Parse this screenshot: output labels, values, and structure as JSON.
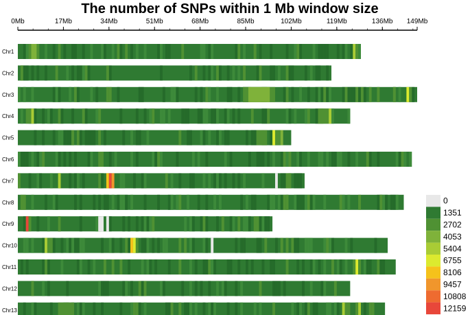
{
  "chart_data": {
    "type": "heatmap",
    "title": "The number of SNPs within 1 Mb window size",
    "x_unit": "Mb",
    "xlim": [
      0,
      149
    ],
    "x_ticks": [
      0,
      17,
      34,
      51,
      68,
      85,
      102,
      119,
      136,
      149
    ],
    "x_tick_labels": [
      "0Mb",
      "17Mb",
      "34Mb",
      "51Mb",
      "68Mb",
      "85Mb",
      "102Mb",
      "119Mb",
      "136Mb",
      "149Mb"
    ],
    "base_color": "#2f7a32",
    "legend": {
      "values": [
        0,
        1351,
        2702,
        4053,
        5404,
        6755,
        8106,
        9457,
        10808,
        12159
      ],
      "colors": [
        "#e8e8e8",
        "#2f7a32",
        "#4f9133",
        "#7fb23a",
        "#a9cc35",
        "#dcea2f",
        "#f5c21b",
        "#f0962c",
        "#ee6b30",
        "#e8473a"
      ]
    },
    "chromosomes": [
      {
        "name": "Chr1",
        "length": 128,
        "highlights": [
          [
            4,
            8,
            2702
          ],
          [
            5,
            7,
            4053
          ],
          [
            15,
            16,
            2702
          ],
          [
            40,
            41,
            2702
          ],
          [
            88,
            89,
            2702
          ],
          [
            104,
            105,
            2702
          ],
          [
            125,
            126,
            5404
          ],
          [
            126,
            127,
            2702
          ]
        ]
      },
      {
        "name": "Chr2",
        "length": 117,
        "highlights": [
          [
            1,
            2,
            2702
          ],
          [
            33,
            34,
            2702
          ],
          [
            66,
            67,
            2702
          ],
          [
            90,
            91,
            2702
          ]
        ]
      },
      {
        "name": "Chr3",
        "length": 149,
        "highlights": [
          [
            84,
            96,
            2702
          ],
          [
            86,
            94,
            4053
          ],
          [
            122,
            123,
            2702
          ],
          [
            134,
            135,
            2702
          ],
          [
            140,
            141,
            2702
          ],
          [
            145,
            146,
            6755
          ],
          [
            146,
            147,
            2702
          ]
        ]
      },
      {
        "name": "Chr4",
        "length": 124,
        "highlights": [
          [
            3,
            6,
            2702
          ],
          [
            5,
            6,
            5404
          ],
          [
            24,
            25,
            2702
          ],
          [
            50,
            51,
            2702
          ],
          [
            112,
            116,
            2702
          ],
          [
            116,
            117,
            5404
          ]
        ]
      },
      {
        "name": "Chr5",
        "length": 102,
        "highlights": [
          [
            20,
            21,
            2702
          ],
          [
            60,
            61,
            2702
          ],
          [
            89,
            93,
            2702
          ],
          [
            95,
            96,
            6755
          ],
          [
            96,
            98,
            2702
          ],
          [
            98,
            99,
            4053
          ]
        ]
      },
      {
        "name": "Chr6",
        "length": 147,
        "highlights": [
          [
            9,
            10,
            2702
          ],
          [
            30,
            32,
            2702
          ],
          [
            52,
            53,
            2702
          ],
          [
            101,
            102,
            2702
          ],
          [
            130,
            131,
            2702
          ],
          [
            143,
            144,
            2702
          ]
        ]
      },
      {
        "name": "Chr7",
        "length": 107,
        "highlights": [
          [
            15,
            16,
            5404
          ],
          [
            30,
            31,
            2702
          ],
          [
            33,
            34,
            8106
          ],
          [
            34,
            35,
            12159
          ],
          [
            35,
            36,
            9457
          ],
          [
            55,
            56,
            2702
          ],
          [
            96,
            97,
            0
          ],
          [
            100,
            102,
            2702
          ]
        ]
      },
      {
        "name": "Chr8",
        "length": 144,
        "highlights": [
          [
            1,
            3,
            2702
          ],
          [
            60,
            61,
            2702
          ],
          [
            100,
            101,
            2702
          ],
          [
            120,
            121,
            2702
          ],
          [
            135,
            136,
            2702
          ]
        ]
      },
      {
        "name": "Chr9",
        "length": 95,
        "highlights": [
          [
            3,
            4,
            12159
          ],
          [
            4,
            5,
            2702
          ],
          [
            15,
            16,
            2702
          ],
          [
            30,
            31,
            2702
          ],
          [
            30,
            32,
            0
          ],
          [
            33,
            34,
            0
          ],
          [
            50,
            51,
            2702
          ],
          [
            88,
            90,
            2702
          ]
        ]
      },
      {
        "name": "Chr10",
        "length": 138,
        "highlights": [
          [
            10,
            11,
            5404
          ],
          [
            11,
            13,
            2702
          ],
          [
            40,
            41,
            2702
          ],
          [
            42,
            43,
            8106
          ],
          [
            43,
            44,
            6755
          ],
          [
            44,
            45,
            2702
          ],
          [
            72,
            73,
            0
          ],
          [
            100,
            101,
            2702
          ]
        ]
      },
      {
        "name": "Chr11",
        "length": 141,
        "highlights": [
          [
            10,
            11,
            2702
          ],
          [
            35,
            36,
            2702
          ],
          [
            60,
            61,
            2702
          ],
          [
            100,
            101,
            2702
          ],
          [
            125,
            126,
            2702
          ],
          [
            126,
            127,
            6755
          ],
          [
            127,
            128,
            2702
          ]
        ]
      },
      {
        "name": "Chr12",
        "length": 124,
        "highlights": [
          [
            5,
            6,
            2702
          ],
          [
            45,
            46,
            2702
          ],
          [
            90,
            91,
            2702
          ]
        ]
      },
      {
        "name": "Chr13",
        "length": 137,
        "highlights": [
          [
            15,
            21,
            2702
          ],
          [
            60,
            61,
            2702
          ],
          [
            95,
            96,
            2702
          ],
          [
            121,
            122,
            5404
          ],
          [
            122,
            124,
            2702
          ],
          [
            127,
            128,
            5404
          ],
          [
            131,
            132,
            2702
          ]
        ]
      }
    ]
  }
}
